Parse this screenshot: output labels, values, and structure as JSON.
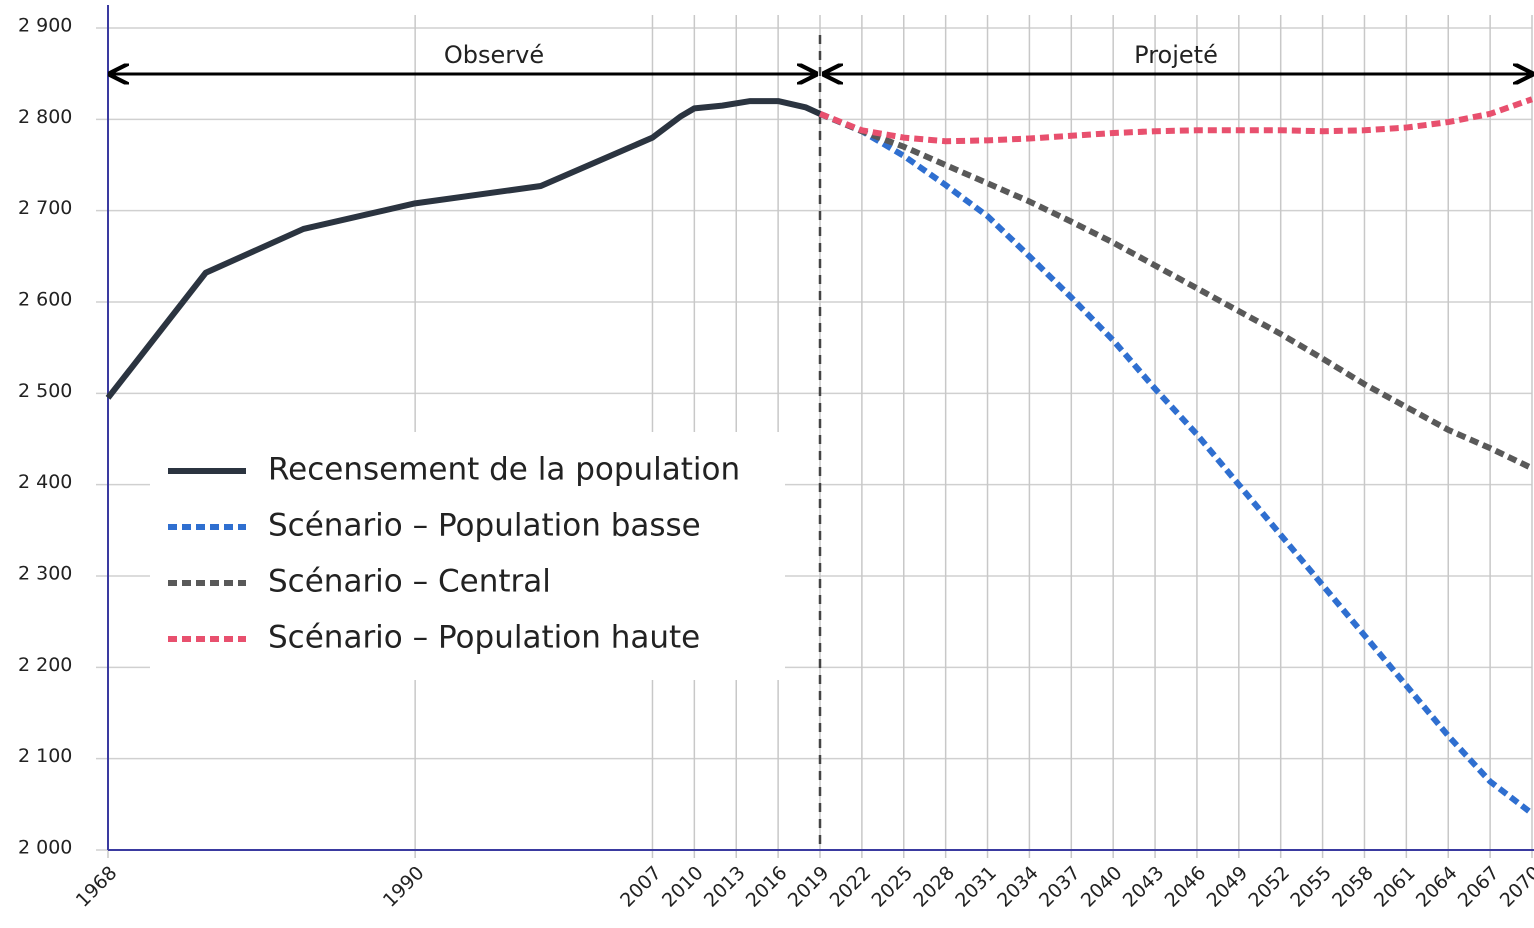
{
  "chart_data": {
    "type": "line",
    "annotations": [
      "Observé",
      "Projeté"
    ],
    "xlim": [
      1968,
      2070
    ],
    "xticks": [
      1968,
      1990,
      2007,
      2010,
      2013,
      2016,
      2019,
      2022,
      2025,
      2028,
      2031,
      2034,
      2037,
      2040,
      2043,
      2046,
      2049,
      2052,
      2055,
      2058,
      2061,
      2064,
      2067,
      2070
    ],
    "ylim": [
      2000,
      2900
    ],
    "yticks": [
      {
        "value": 2000,
        "label": "2 000"
      },
      {
        "value": 2100,
        "label": "2 100"
      },
      {
        "value": 2200,
        "label": "2 200"
      },
      {
        "value": 2300,
        "label": "2 300"
      },
      {
        "value": 2400,
        "label": "2 400"
      },
      {
        "value": 2500,
        "label": "2 500"
      },
      {
        "value": 2600,
        "label": "2 600"
      },
      {
        "value": 2700,
        "label": "2 700"
      },
      {
        "value": 2800,
        "label": "2 800"
      },
      {
        "value": 2900,
        "label": "2 900"
      }
    ],
    "grid": true,
    "legend": "center-left",
    "series": [
      {
        "name": "Recensement de la population",
        "color": "#2b3440",
        "style": "solid",
        "x": [
          1968,
          1975,
          1982,
          1990,
          1999,
          2007,
          2009,
          2010,
          2012,
          2014,
          2016,
          2018,
          2019
        ],
        "values": [
          2495,
          2632,
          2680,
          2708,
          2727,
          2780,
          2803,
          2812,
          2815,
          2820,
          2820,
          2813,
          2806
        ]
      },
      {
        "name": "Scénario – Population basse",
        "color": "#2f6fd0",
        "style": "dotted",
        "x": [
          2019,
          2022,
          2025,
          2028,
          2031,
          2034,
          2037,
          2040,
          2043,
          2046,
          2049,
          2052,
          2055,
          2058,
          2061,
          2064,
          2067,
          2070
        ],
        "values": [
          2806,
          2787,
          2760,
          2728,
          2694,
          2650,
          2605,
          2558,
          2505,
          2455,
          2400,
          2345,
          2290,
          2235,
          2180,
          2125,
          2075,
          2040
        ]
      },
      {
        "name": "Scénario – Central",
        "color": "#595959",
        "style": "dotted",
        "x": [
          2019,
          2022,
          2025,
          2028,
          2031,
          2034,
          2037,
          2040,
          2043,
          2046,
          2049,
          2052,
          2055,
          2058,
          2061,
          2064,
          2067,
          2070
        ],
        "values": [
          2806,
          2787,
          2770,
          2750,
          2730,
          2710,
          2688,
          2665,
          2640,
          2615,
          2590,
          2565,
          2538,
          2510,
          2485,
          2460,
          2440,
          2418
        ]
      },
      {
        "name": "Scénario – Population haute",
        "color": "#e8506e",
        "style": "dotted",
        "x": [
          2019,
          2022,
          2025,
          2028,
          2031,
          2034,
          2037,
          2040,
          2043,
          2046,
          2049,
          2052,
          2055,
          2058,
          2061,
          2064,
          2067,
          2070
        ],
        "values": [
          2806,
          2788,
          2780,
          2776,
          2777,
          2779,
          2782,
          2785,
          2787,
          2788,
          2788,
          2788,
          2787,
          2788,
          2791,
          2797,
          2806,
          2822
        ]
      }
    ]
  }
}
